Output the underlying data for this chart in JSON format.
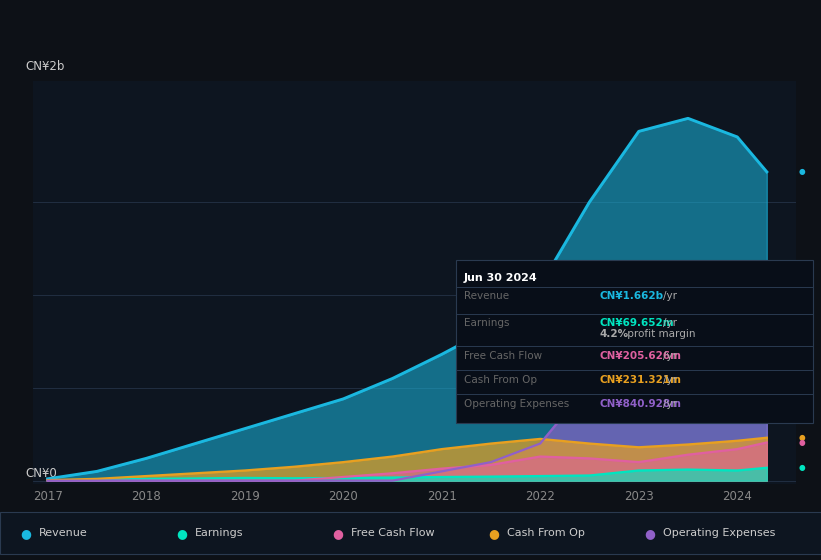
{
  "background_color": "#0d1117",
  "plot_bg_color": "#0d1520",
  "grid_color": "#2a3a50",
  "years": [
    2017,
    2017.5,
    2018,
    2018.5,
    2019,
    2019.5,
    2020,
    2020.5,
    2021,
    2021.5,
    2022,
    2022.5,
    2023,
    2023.5,
    2024,
    2024.3
  ],
  "revenue": [
    0.01,
    0.05,
    0.12,
    0.2,
    0.28,
    0.36,
    0.44,
    0.55,
    0.68,
    0.82,
    1.05,
    1.5,
    1.88,
    1.95,
    1.85,
    1.662
  ],
  "earnings": [
    0.002,
    0.005,
    0.01,
    0.012,
    0.015,
    0.013,
    0.015,
    0.017,
    0.02,
    0.022,
    0.025,
    0.028,
    0.055,
    0.06,
    0.055,
    0.0696
  ],
  "free_cash_flow": [
    0.0,
    0.0,
    0.0,
    0.0,
    0.0,
    0.0,
    0.02,
    0.04,
    0.065,
    0.085,
    0.13,
    0.12,
    0.1,
    0.14,
    0.17,
    0.2056
  ],
  "cash_from_op": [
    0.003,
    0.01,
    0.025,
    0.04,
    0.055,
    0.075,
    0.1,
    0.13,
    0.17,
    0.2,
    0.225,
    0.2,
    0.18,
    0.195,
    0.215,
    0.2313
  ],
  "operating_expenses": [
    0.0,
    0.0,
    0.0,
    0.0,
    0.0,
    0.0,
    0.0,
    0.0,
    0.05,
    0.1,
    0.2,
    0.52,
    0.8,
    0.82,
    0.8,
    0.8409
  ],
  "revenue_color": "#1ab8e0",
  "earnings_color": "#00e5c0",
  "free_cash_flow_color": "#e060a0",
  "cash_from_op_color": "#e8a020",
  "operating_expenses_color": "#9060c8",
  "xticks": [
    2017,
    2018,
    2019,
    2020,
    2021,
    2022,
    2023,
    2024
  ],
  "ylabel_top": "CN¥2b",
  "ylabel_bottom": "CN¥0",
  "ylim_min": -0.02,
  "ylim_max": 2.15,
  "xlim_min": 2016.85,
  "xlim_max": 2024.6,
  "tooltip": {
    "date": "Jun 30 2024",
    "revenue_val": "CN¥1.662b",
    "revenue_color": "#1ab8e0",
    "earnings_val": "CN¥69.652m",
    "earnings_color": "#00e5c0",
    "profit_margin": "4.2%",
    "fcf_val": "CN¥205.626m",
    "fcf_color": "#e060a0",
    "cash_op_val": "CN¥231.321m",
    "cash_op_color": "#e8a020",
    "op_exp_val": "CN¥840.928m",
    "op_exp_color": "#9060c8"
  },
  "legend": [
    {
      "label": "Revenue",
      "color": "#1ab8e0"
    },
    {
      "label": "Earnings",
      "color": "#00e5c0"
    },
    {
      "label": "Free Cash Flow",
      "color": "#e060a0"
    },
    {
      "label": "Cash From Op",
      "color": "#e8a020"
    },
    {
      "label": "Operating Expenses",
      "color": "#9060c8"
    }
  ]
}
